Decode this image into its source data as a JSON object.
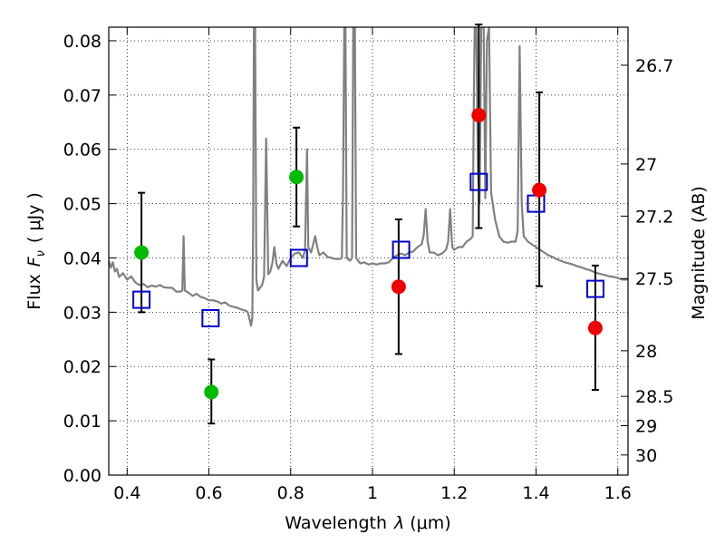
{
  "chart_data": {
    "type": "scatter",
    "xlabel": "Wavelength",
    "xlabel_symbol": "λ",
    "xlabel_unit": "(μm)",
    "ylabel": "Flux",
    "ylabel_symbol": "F",
    "ylabel_subscript": "ν",
    "ylabel_unit": "( μJy )",
    "y2label": "Magnitude (AB)",
    "xlim": [
      0.355,
      1.625
    ],
    "ylim": [
      0.0,
      0.0825
    ],
    "grid": true,
    "x_ticks": [
      0.4,
      0.6,
      0.8,
      1.0,
      1.2,
      1.4,
      1.6
    ],
    "x_tick_labels": [
      "0.4",
      "0.6",
      "0.8",
      "1",
      "1.2",
      "1.4",
      "1.6"
    ],
    "y_ticks": [
      0.0,
      0.01,
      0.02,
      0.03,
      0.04,
      0.05,
      0.06,
      0.07,
      0.08
    ],
    "y_tick_labels": [
      "0.00",
      "0.01",
      "0.02",
      "0.03",
      "0.04",
      "0.05",
      "0.06",
      "0.07",
      "0.08"
    ],
    "y2_ticks": [
      {
        "label": "26.7",
        "flux": 0.0755
      },
      {
        "label": "27",
        "flux": 0.0573
      },
      {
        "label": "27.2",
        "flux": 0.0477
      },
      {
        "label": "27.5",
        "flux": 0.0362
      },
      {
        "label": "28",
        "flux": 0.0229
      },
      {
        "label": "28.5",
        "flux": 0.0145
      },
      {
        "label": "29",
        "flux": 0.0091
      },
      {
        "label": "30",
        "flux": 0.0037
      }
    ],
    "colors": {
      "green": "#00bb00",
      "red": "#ee0000",
      "model_square": "#0000cc",
      "spectrum": "#808080",
      "errorbar": "#000000"
    },
    "series": [
      {
        "marker": "circle",
        "color": "green",
        "points": [
          {
            "x": 0.435,
            "y": 0.041,
            "err_low": 0.03,
            "err_high": 0.052
          },
          {
            "x": 0.606,
            "y": 0.0153,
            "err_low": 0.0095,
            "err_high": 0.0213
          },
          {
            "x": 0.814,
            "y": 0.0549,
            "err_low": 0.0458,
            "err_high": 0.064
          }
        ]
      },
      {
        "marker": "circle",
        "color": "red",
        "points": [
          {
            "x": 1.064,
            "y": 0.0347,
            "err_low": 0.0223,
            "err_high": 0.0471
          },
          {
            "x": 1.26,
            "y": 0.0663,
            "err_low": 0.0455,
            "err_high": 0.083
          },
          {
            "x": 1.408,
            "y": 0.0525,
            "err_low": 0.0348,
            "err_high": 0.0705
          },
          {
            "x": 1.545,
            "y": 0.0271,
            "err_low": 0.0157,
            "err_high": 0.0386
          }
        ]
      },
      {
        "marker": "square",
        "color": "model_square",
        "points": [
          {
            "x": 0.435,
            "y": 0.0323
          },
          {
            "x": 0.604,
            "y": 0.0289
          },
          {
            "x": 0.82,
            "y": 0.04
          },
          {
            "x": 1.07,
            "y": 0.0415
          },
          {
            "x": 1.26,
            "y": 0.054
          },
          {
            "x": 1.4,
            "y": 0.05
          },
          {
            "x": 1.545,
            "y": 0.0343
          }
        ]
      },
      {
        "line": "spectrum",
        "color": "spectrum",
        "points": [
          [
            0.355,
            0.0395
          ],
          [
            0.36,
            0.0382
          ],
          [
            0.365,
            0.0392
          ],
          [
            0.37,
            0.0375
          ],
          [
            0.375,
            0.038
          ],
          [
            0.38,
            0.0365
          ],
          [
            0.39,
            0.0372
          ],
          [
            0.4,
            0.036
          ],
          [
            0.41,
            0.0366
          ],
          [
            0.42,
            0.0355
          ],
          [
            0.43,
            0.035
          ],
          [
            0.44,
            0.0352
          ],
          [
            0.45,
            0.0346
          ],
          [
            0.46,
            0.0349
          ],
          [
            0.47,
            0.0347
          ],
          [
            0.48,
            0.035
          ],
          [
            0.49,
            0.0346
          ],
          [
            0.5,
            0.0345
          ],
          [
            0.51,
            0.0345
          ],
          [
            0.52,
            0.0338
          ],
          [
            0.53,
            0.0338
          ],
          [
            0.535,
            0.034
          ],
          [
            0.538,
            0.044
          ],
          [
            0.541,
            0.034
          ],
          [
            0.55,
            0.0336
          ],
          [
            0.56,
            0.033
          ],
          [
            0.57,
            0.0334
          ],
          [
            0.58,
            0.0328
          ],
          [
            0.59,
            0.0326
          ],
          [
            0.6,
            0.0322
          ],
          [
            0.61,
            0.0322
          ],
          [
            0.62,
            0.032
          ],
          [
            0.63,
            0.0316
          ],
          [
            0.64,
            0.0318
          ],
          [
            0.65,
            0.0312
          ],
          [
            0.66,
            0.031
          ],
          [
            0.67,
            0.0308
          ],
          [
            0.68,
            0.0305
          ],
          [
            0.69,
            0.0303
          ],
          [
            0.695,
            0.03
          ],
          [
            0.7,
            0.0285
          ],
          [
            0.703,
            0.0275
          ],
          [
            0.706,
            0.029
          ],
          [
            0.708,
            0.045
          ],
          [
            0.71,
            0.0825
          ],
          [
            0.713,
            0.0825
          ],
          [
            0.716,
            0.036
          ],
          [
            0.72,
            0.034
          ],
          [
            0.73,
            0.035
          ],
          [
            0.735,
            0.0365
          ],
          [
            0.74,
            0.062
          ],
          [
            0.745,
            0.037
          ],
          [
            0.75,
            0.0375
          ],
          [
            0.755,
            0.039
          ],
          [
            0.76,
            0.042
          ],
          [
            0.765,
            0.039
          ],
          [
            0.77,
            0.038
          ],
          [
            0.78,
            0.0395
          ],
          [
            0.79,
            0.0385
          ],
          [
            0.8,
            0.04
          ],
          [
            0.81,
            0.0408
          ],
          [
            0.82,
            0.041
          ],
          [
            0.83,
            0.04
          ],
          [
            0.835,
            0.0415
          ],
          [
            0.84,
            0.06
          ],
          [
            0.843,
            0.042
          ],
          [
            0.85,
            0.041
          ],
          [
            0.86,
            0.044
          ],
          [
            0.865,
            0.042
          ],
          [
            0.87,
            0.0405
          ],
          [
            0.88,
            0.041
          ],
          [
            0.89,
            0.0402
          ],
          [
            0.9,
            0.04
          ],
          [
            0.91,
            0.0398
          ],
          [
            0.92,
            0.0398
          ],
          [
            0.925,
            0.04
          ],
          [
            0.928,
            0.052
          ],
          [
            0.931,
            0.0825
          ],
          [
            0.934,
            0.0825
          ],
          [
            0.937,
            0.04
          ],
          [
            0.945,
            0.0395
          ],
          [
            0.95,
            0.04
          ],
          [
            0.953,
            0.0825
          ],
          [
            0.957,
            0.0825
          ],
          [
            0.96,
            0.04
          ],
          [
            0.97,
            0.039
          ],
          [
            0.98,
            0.0392
          ],
          [
            0.99,
            0.0388
          ],
          [
            1.0,
            0.039
          ],
          [
            1.01,
            0.0388
          ],
          [
            1.02,
            0.039
          ],
          [
            1.03,
            0.039
          ],
          [
            1.04,
            0.0392
          ],
          [
            1.05,
            0.04
          ],
          [
            1.06,
            0.0405
          ],
          [
            1.07,
            0.0408
          ],
          [
            1.08,
            0.0405
          ],
          [
            1.09,
            0.041
          ],
          [
            1.1,
            0.0412
          ],
          [
            1.11,
            0.042
          ],
          [
            1.12,
            0.0425
          ],
          [
            1.125,
            0.044
          ],
          [
            1.13,
            0.049
          ],
          [
            1.135,
            0.043
          ],
          [
            1.14,
            0.041
          ],
          [
            1.15,
            0.041
          ],
          [
            1.16,
            0.0405
          ],
          [
            1.17,
            0.0408
          ],
          [
            1.18,
            0.0415
          ],
          [
            1.185,
            0.043
          ],
          [
            1.19,
            0.049
          ],
          [
            1.195,
            0.042
          ],
          [
            1.2,
            0.0415
          ],
          [
            1.21,
            0.042
          ],
          [
            1.22,
            0.042
          ],
          [
            1.23,
            0.043
          ],
          [
            1.24,
            0.0435
          ],
          [
            1.245,
            0.044
          ],
          [
            1.248,
            0.07
          ],
          [
            1.25,
            0.0825
          ],
          [
            1.254,
            0.0825
          ],
          [
            1.258,
            0.056
          ],
          [
            1.262,
            0.05
          ],
          [
            1.266,
            0.0825
          ],
          [
            1.272,
            0.0825
          ],
          [
            1.276,
            0.051
          ],
          [
            1.28,
            0.08
          ],
          [
            1.285,
            0.0825
          ],
          [
            1.29,
            0.052
          ],
          [
            1.3,
            0.047
          ],
          [
            1.31,
            0.044
          ],
          [
            1.32,
            0.043
          ],
          [
            1.33,
            0.0428
          ],
          [
            1.34,
            0.043
          ],
          [
            1.35,
            0.043
          ],
          [
            1.355,
            0.045
          ],
          [
            1.36,
            0.079
          ],
          [
            1.365,
            0.05
          ],
          [
            1.37,
            0.044
          ],
          [
            1.38,
            0.043
          ],
          [
            1.39,
            0.0425
          ],
          [
            1.4,
            0.042
          ],
          [
            1.41,
            0.0415
          ],
          [
            1.42,
            0.041
          ],
          [
            1.43,
            0.0405
          ],
          [
            1.44,
            0.0402
          ],
          [
            1.45,
            0.0398
          ],
          [
            1.46,
            0.0395
          ],
          [
            1.47,
            0.0392
          ],
          [
            1.48,
            0.039
          ],
          [
            1.49,
            0.0388
          ],
          [
            1.5,
            0.0385
          ],
          [
            1.51,
            0.0383
          ],
          [
            1.52,
            0.038
          ],
          [
            1.53,
            0.0378
          ],
          [
            1.54,
            0.0375
          ],
          [
            1.55,
            0.0372
          ],
          [
            1.56,
            0.037
          ],
          [
            1.57,
            0.0368
          ],
          [
            1.58,
            0.0366
          ],
          [
            1.59,
            0.0365
          ],
          [
            1.6,
            0.0363
          ],
          [
            1.61,
            0.036
          ],
          [
            1.625,
            0.036
          ]
        ]
      }
    ]
  }
}
